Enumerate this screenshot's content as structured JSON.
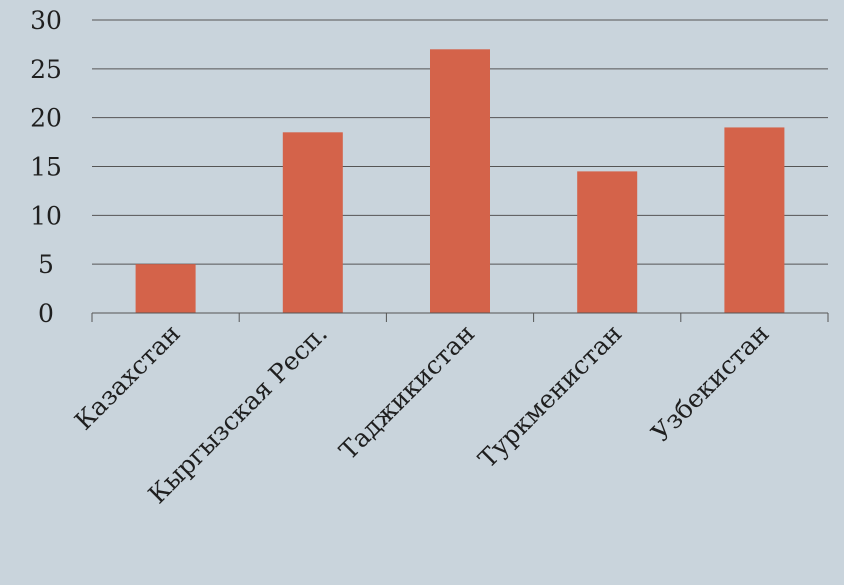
{
  "chart_data": {
    "type": "bar",
    "categories": [
      "Казахстан",
      "Кыргызская Респ.",
      "Таджикистан",
      "Туркменистан",
      "Узбекистан"
    ],
    "values": [
      5,
      18.5,
      27,
      14.5,
      19
    ],
    "ylim": [
      0,
      30
    ],
    "yticks": [
      "0",
      "5",
      "10",
      "15",
      "20",
      "25",
      "30"
    ],
    "grid": true,
    "legend": "none",
    "bar_color": "#d4634a",
    "grid_color": "#555555",
    "background": "#c9d4dc"
  }
}
